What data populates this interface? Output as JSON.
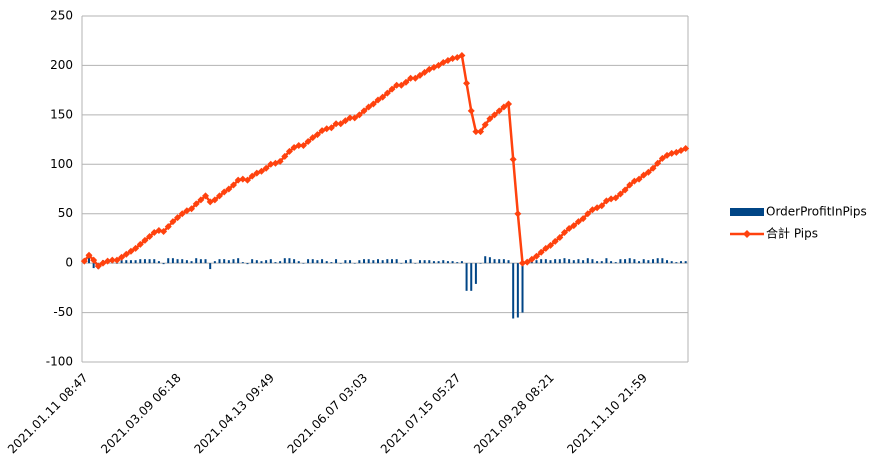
{
  "chart_data": {
    "type": "bar_line",
    "categories": [
      "2021.01.11 08:47",
      null,
      null,
      null,
      null,
      null,
      null,
      null,
      null,
      null,
      null,
      null,
      null,
      null,
      null,
      null,
      null,
      null,
      null,
      null,
      "2021.03.09 06:18",
      null,
      null,
      null,
      null,
      null,
      null,
      null,
      null,
      null,
      null,
      null,
      null,
      null,
      null,
      null,
      null,
      null,
      null,
      null,
      "2021.04.13 09:49",
      null,
      null,
      null,
      null,
      null,
      null,
      null,
      null,
      null,
      null,
      null,
      null,
      null,
      null,
      null,
      null,
      null,
      null,
      null,
      "2021.06.07 03:03",
      null,
      null,
      null,
      null,
      null,
      null,
      null,
      null,
      null,
      null,
      null,
      null,
      null,
      null,
      null,
      null,
      null,
      null,
      null,
      "2021.07.15 05:27",
      null,
      null,
      null,
      null,
      null,
      null,
      null,
      null,
      null,
      null,
      null,
      null,
      null,
      null,
      null,
      null,
      null,
      null,
      null,
      "2021.09.28 08:21",
      null,
      null,
      null,
      null,
      null,
      null,
      null,
      null,
      null,
      null,
      null,
      null,
      null,
      null,
      null,
      null,
      null,
      null,
      null,
      "2021.11.10 21:59",
      null,
      null,
      null,
      null,
      null,
      null,
      null,
      null,
      null
    ],
    "series": [
      {
        "name": "OrderProfitInPips",
        "kind": "bar",
        "color": "#004586",
        "values": [
          2,
          6,
          -5,
          -6,
          3,
          2,
          1,
          0,
          3,
          3,
          3,
          3,
          4,
          4,
          4,
          4,
          2,
          -1,
          5,
          5,
          4,
          4,
          3,
          2,
          5,
          4,
          4,
          -6,
          2,
          4,
          4,
          3,
          4,
          5,
          1,
          -1,
          4,
          3,
          2,
          3,
          4,
          1,
          2,
          5,
          5,
          4,
          2,
          0,
          4,
          4,
          3,
          4,
          2,
          1,
          4,
          0,
          3,
          3,
          0,
          3,
          4,
          4,
          3,
          4,
          3,
          4,
          4,
          4,
          0,
          3,
          4,
          0,
          3,
          3,
          3,
          2,
          2,
          3,
          2,
          2,
          1,
          2,
          -28,
          -28,
          -21,
          0,
          7,
          6,
          4,
          4,
          4,
          3,
          -56,
          -55,
          -50,
          1,
          3,
          3,
          4,
          4,
          3,
          4,
          4,
          5,
          4,
          3,
          4,
          3,
          5,
          4,
          2,
          2,
          5,
          2,
          1,
          4,
          4,
          5,
          4,
          2,
          4,
          3,
          4,
          5,
          5,
          3,
          2,
          1,
          2,
          2
        ]
      },
      {
        "name": "合計 Pips",
        "kind": "line",
        "color": "#ff420e",
        "values": [
          2,
          8,
          3,
          -3,
          0,
          2,
          3,
          3,
          6,
          9,
          12,
          15,
          19,
          23,
          27,
          31,
          33,
          32,
          37,
          42,
          46,
          50,
          53,
          55,
          60,
          64,
          68,
          62,
          64,
          68,
          72,
          75,
          79,
          84,
          85,
          84,
          88,
          91,
          93,
          96,
          100,
          101,
          103,
          108,
          113,
          117,
          119,
          119,
          123,
          127,
          130,
          134,
          136,
          137,
          141,
          141,
          144,
          147,
          147,
          150,
          154,
          158,
          161,
          165,
          168,
          172,
          176,
          180,
          180,
          183,
          187,
          187,
          190,
          193,
          196,
          198,
          200,
          203,
          205,
          207,
          208,
          210,
          182,
          154,
          133,
          133,
          140,
          146,
          150,
          154,
          158,
          161,
          105,
          50,
          0,
          1,
          4,
          7,
          11,
          15,
          18,
          22,
          26,
          31,
          35,
          38,
          42,
          45,
          50,
          54,
          56,
          58,
          63,
          65,
          66,
          70,
          74,
          79,
          83,
          85,
          89,
          92,
          96,
          101,
          106,
          109,
          111,
          112,
          114,
          116
        ]
      }
    ],
    "ylim": [
      -100,
      250
    ],
    "yticks": [
      -100,
      -50,
      0,
      50,
      100,
      150,
      200,
      250
    ],
    "grid": true,
    "legend": "right"
  }
}
